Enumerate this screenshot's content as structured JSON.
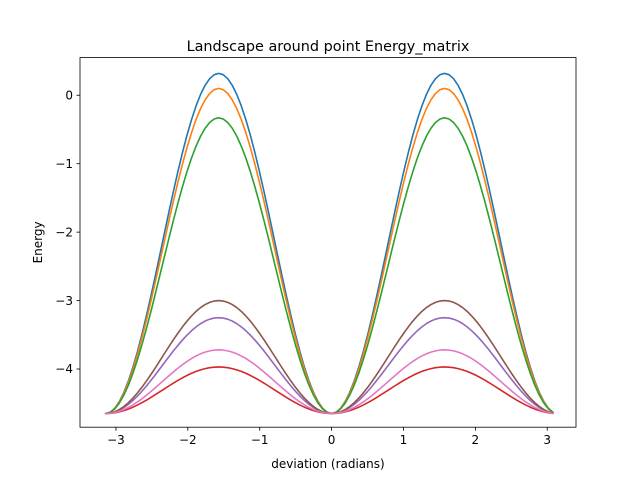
{
  "chart_data": {
    "type": "line",
    "title": "Landscape around point Energy_matrix",
    "xlabel": "deviation (radians)",
    "ylabel": "Energy",
    "xlim": [
      -3.5,
      3.4
    ],
    "ylim": [
      -4.85,
      0.55
    ],
    "xticks": [
      -3,
      -2,
      -1,
      0,
      1,
      2,
      3
    ],
    "xtick_labels": [
      "−3",
      "−2",
      "−1",
      "0",
      "1",
      "2",
      "3"
    ],
    "yticks": [
      -4,
      -3,
      -2,
      -1,
      0
    ],
    "ytick_labels": [
      "−4",
      "−3",
      "−2",
      "−1",
      "0"
    ],
    "grid": false,
    "legend": "none",
    "x_range": [
      -3.1416,
      3.0788
    ],
    "points_per_series": 100,
    "model": "y = base + amplitude * sin(x)^2",
    "base": -4.65,
    "series": [
      {
        "color": "#1f77b4",
        "peak": 0.32
      },
      {
        "color": "#ff7f0e",
        "peak": 0.1
      },
      {
        "color": "#2ca02c",
        "peak": -0.33
      },
      {
        "color": "#d62728",
        "peak": -3.97
      },
      {
        "color": "#9467bd",
        "peak": -3.25
      },
      {
        "color": "#8c564b",
        "peak": -3.0
      },
      {
        "color": "#e377c2",
        "peak": -3.72
      }
    ]
  }
}
